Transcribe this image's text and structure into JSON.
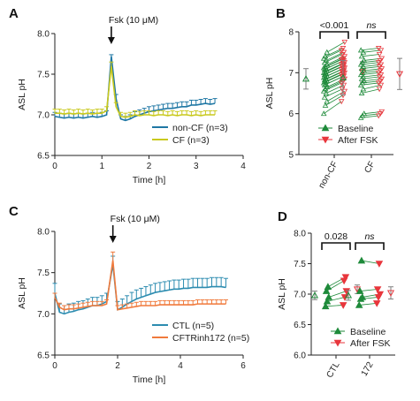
{
  "colors": {
    "nonCF": "#1f77a4",
    "CF": "#c9c91e",
    "CTL": "#2c8cb0",
    "inh": "#f07a3c",
    "baseline": "#1e8a3a",
    "afterFSK": "#e8363c",
    "gray": "#7f7f7f"
  },
  "chart_data": [
    {
      "panel": "A",
      "type": "line",
      "xlabel": "Time [h]",
      "ylabel": "ASL pH",
      "xlim": [
        0,
        4
      ],
      "ylim": [
        6.5,
        8.0
      ],
      "xticks": [
        "0",
        "1",
        "2",
        "3",
        "4"
      ],
      "yticks": [
        "6.5",
        "7.0",
        "7.5",
        "8.0"
      ],
      "annotation": "Fsk (10 μM)",
      "annotation_x": 1.2,
      "legend_position": "bottom-right",
      "x": [
        0,
        0.1,
        0.2,
        0.3,
        0.4,
        0.5,
        0.6,
        0.7,
        0.8,
        0.9,
        1.0,
        1.1,
        1.2,
        1.3,
        1.4,
        1.5,
        1.6,
        1.7,
        1.8,
        1.9,
        2.0,
        2.1,
        2.2,
        2.3,
        2.4,
        2.5,
        2.6,
        2.7,
        2.8,
        2.9,
        3.0,
        3.1,
        3.2,
        3.3,
        3.4
      ],
      "series": [
        {
          "name": "non-CF (n=3)",
          "color": "nonCF",
          "values": [
            6.98,
            6.97,
            6.96,
            6.97,
            6.96,
            6.97,
            6.96,
            6.97,
            6.98,
            6.97,
            6.98,
            7.0,
            7.72,
            7.2,
            6.95,
            6.93,
            6.95,
            6.98,
            7.0,
            7.02,
            7.04,
            7.05,
            7.06,
            7.07,
            7.08,
            7.08,
            7.09,
            7.1,
            7.1,
            7.12,
            7.12,
            7.13,
            7.14,
            7.13,
            7.14
          ],
          "err": [
            0.05,
            0.05,
            0.05,
            0.05,
            0.05,
            0.05,
            0.05,
            0.05,
            0.05,
            0.05,
            0.05,
            0.05,
            0.02,
            0.05,
            0.05,
            0.05,
            0.05,
            0.06,
            0.06,
            0.06,
            0.06,
            0.06,
            0.06,
            0.06,
            0.06,
            0.06,
            0.06,
            0.06,
            0.06,
            0.06,
            0.06,
            0.06,
            0.06,
            0.06,
            0.06
          ]
        },
        {
          "name": "CF (n=3)",
          "color": "CF",
          "values": [
            7.02,
            7.02,
            7.01,
            7.02,
            7.01,
            7.02,
            7.01,
            7.02,
            7.01,
            7.02,
            7.02,
            7.05,
            7.6,
            7.1,
            6.98,
            6.97,
            6.98,
            7.0,
            6.99,
            7.0,
            7.0,
            6.99,
            7.0,
            7.0,
            6.99,
            7.0,
            6.99,
            7.0,
            7.0,
            6.99,
            7.0,
            6.99,
            7.0,
            7.0,
            7.0
          ],
          "err": [
            0.05,
            0.05,
            0.05,
            0.05,
            0.05,
            0.05,
            0.05,
            0.05,
            0.05,
            0.05,
            0.05,
            0.05,
            0.05,
            0.05,
            0.05,
            0.05,
            0.05,
            0.05,
            0.05,
            0.05,
            0.05,
            0.05,
            0.05,
            0.05,
            0.05,
            0.05,
            0.05,
            0.05,
            0.05,
            0.05,
            0.05,
            0.05,
            0.05,
            0.05,
            0.05
          ]
        }
      ]
    },
    {
      "panel": "B",
      "type": "scatter",
      "ylabel": "ASL pH",
      "ylim": [
        5,
        8
      ],
      "yticks": [
        "5",
        "6",
        "7",
        "8"
      ],
      "categories": [
        "non-CF",
        "CF"
      ],
      "legend_position": "bottom",
      "significance": [
        "<0.001",
        "ns"
      ],
      "summary": [
        {
          "category": "non-CF",
          "baseline_mean": 6.85,
          "baseline_sd": 0.25,
          "after_mean": 7.02,
          "after_sd": 0.25
        },
        {
          "category": "CF",
          "baseline_mean": 6.88,
          "baseline_sd": 0.42,
          "after_mean": 6.97,
          "after_sd": 0.38
        }
      ],
      "series": [
        {
          "name": "Baseline",
          "color": "baseline",
          "marker": "triangle-up",
          "nonCF": [
            6.0,
            6.2,
            6.3,
            6.4,
            6.5,
            6.55,
            6.6,
            6.65,
            6.7,
            6.72,
            6.75,
            6.78,
            6.8,
            6.82,
            6.85,
            6.88,
            6.9,
            6.92,
            6.95,
            6.98,
            7.0,
            7.02,
            7.05,
            7.08,
            7.1,
            7.12,
            7.15,
            7.2,
            7.25,
            7.3,
            7.35,
            7.4,
            7.5
          ],
          "CF": [
            5.9,
            5.95,
            6.0,
            6.5,
            6.6,
            6.7,
            6.75,
            6.8,
            6.85,
            6.9,
            6.95,
            7.0,
            7.05,
            7.1,
            7.15,
            7.2,
            7.25,
            7.3,
            7.4,
            7.5,
            7.55
          ]
        },
        {
          "name": "After FSK",
          "color": "afterFSK",
          "marker": "triangle-down",
          "nonCF": [
            6.3,
            6.45,
            6.55,
            6.6,
            6.7,
            6.75,
            6.8,
            6.85,
            6.9,
            6.92,
            6.95,
            6.98,
            7.0,
            7.02,
            7.05,
            7.08,
            7.1,
            7.12,
            7.15,
            7.18,
            7.2,
            7.22,
            7.25,
            7.28,
            7.3,
            7.32,
            7.35,
            7.4,
            7.45,
            7.5,
            7.55,
            7.6,
            7.75
          ],
          "CF": [
            5.95,
            6.0,
            6.05,
            6.6,
            6.7,
            6.75,
            6.8,
            6.85,
            6.9,
            6.95,
            7.0,
            7.05,
            7.1,
            7.15,
            7.2,
            7.25,
            7.3,
            7.35,
            7.45,
            7.55,
            7.6
          ]
        }
      ]
    },
    {
      "panel": "C",
      "type": "line",
      "xlabel": "Time [h]",
      "ylabel": "ASL pH",
      "xlim": [
        0,
        6
      ],
      "ylim": [
        6.5,
        8.0
      ],
      "xticks": [
        "0",
        "2",
        "4",
        "6"
      ],
      "yticks": [
        "6.5",
        "7.0",
        "7.5",
        "8.0"
      ],
      "annotation": "Fsk (10 μM)",
      "annotation_x": 1.85,
      "legend_position": "bottom-right",
      "x": [
        0,
        0.15,
        0.3,
        0.45,
        0.6,
        0.75,
        0.9,
        1.05,
        1.2,
        1.35,
        1.5,
        1.65,
        1.85,
        2.0,
        2.15,
        2.3,
        2.45,
        2.6,
        2.75,
        2.9,
        3.05,
        3.2,
        3.35,
        3.5,
        3.65,
        3.8,
        3.95,
        4.1,
        4.25,
        4.4,
        4.55,
        4.7,
        4.85,
        5.0,
        5.15,
        5.3,
        5.45
      ],
      "series": [
        {
          "name": "CTL  (n=5)",
          "color": "CTL",
          "values": [
            7.25,
            7.02,
            7.0,
            7.02,
            7.03,
            7.05,
            7.06,
            7.08,
            7.1,
            7.1,
            7.12,
            7.15,
            7.6,
            7.05,
            7.08,
            7.12,
            7.15,
            7.18,
            7.2,
            7.22,
            7.24,
            7.26,
            7.27,
            7.28,
            7.29,
            7.3,
            7.3,
            7.31,
            7.31,
            7.32,
            7.32,
            7.32,
            7.32,
            7.33,
            7.33,
            7.33,
            7.32
          ],
          "err": [
            0.12,
            0.1,
            0.1,
            0.1,
            0.1,
            0.1,
            0.1,
            0.1,
            0.1,
            0.1,
            0.1,
            0.1,
            0.1,
            0.1,
            0.1,
            0.1,
            0.11,
            0.11,
            0.11,
            0.11,
            0.11,
            0.11,
            0.11,
            0.11,
            0.11,
            0.11,
            0.11,
            0.11,
            0.11,
            0.11,
            0.11,
            0.11,
            0.11,
            0.11,
            0.11,
            0.11,
            0.11
          ]
        },
        {
          "name": "CFTRinh172  (n=5)",
          "color": "inh",
          "values": [
            7.2,
            7.08,
            7.05,
            7.06,
            7.06,
            7.07,
            7.08,
            7.09,
            7.1,
            7.1,
            7.1,
            7.12,
            7.65,
            7.05,
            7.06,
            7.07,
            7.08,
            7.09,
            7.1,
            7.1,
            7.1,
            7.1,
            7.11,
            7.11,
            7.11,
            7.11,
            7.11,
            7.11,
            7.11,
            7.11,
            7.12,
            7.12,
            7.12,
            7.12,
            7.12,
            7.12,
            7.12
          ],
          "err": [
            0.05,
            0.05,
            0.05,
            0.05,
            0.05,
            0.05,
            0.05,
            0.05,
            0.05,
            0.05,
            0.05,
            0.05,
            0.1,
            0.05,
            0.05,
            0.05,
            0.05,
            0.05,
            0.05,
            0.05,
            0.05,
            0.05,
            0.05,
            0.05,
            0.05,
            0.05,
            0.05,
            0.05,
            0.05,
            0.05,
            0.05,
            0.05,
            0.05,
            0.05,
            0.05,
            0.05,
            0.05
          ]
        }
      ]
    },
    {
      "panel": "D",
      "type": "scatter",
      "ylabel": "ASL pH",
      "ylim": [
        6.0,
        8.0
      ],
      "yticks": [
        "6.0",
        "6.5",
        "7.0",
        "7.5",
        "8.0"
      ],
      "categories": [
        "CTL",
        "172"
      ],
      "legend_position": "bottom",
      "significance": [
        "0.028",
        "ns"
      ],
      "summary": [
        {
          "category": "CTL",
          "baseline_mean": 6.98,
          "baseline_sd": 0.07,
          "after_mean": 7.08,
          "after_sd": 0.07
        },
        {
          "category": "172",
          "baseline_mean": 6.98,
          "baseline_sd": 0.08,
          "after_mean": 7.02,
          "after_sd": 0.1
        }
      ],
      "series": [
        {
          "name": "Baseline",
          "color": "baseline",
          "marker": "triangle-up",
          "CTL": [
            6.8,
            6.88,
            6.95,
            7.05,
            7.12
          ],
          "172": [
            6.82,
            6.92,
            6.95,
            7.05,
            7.55
          ]
        },
        {
          "name": "After FSK",
          "color": "afterFSK",
          "marker": "triangle-down",
          "CTL": [
            6.82,
            6.95,
            7.05,
            7.22,
            7.28
          ],
          "172": [
            6.85,
            6.95,
            7.0,
            7.08,
            7.5
          ]
        }
      ]
    }
  ]
}
